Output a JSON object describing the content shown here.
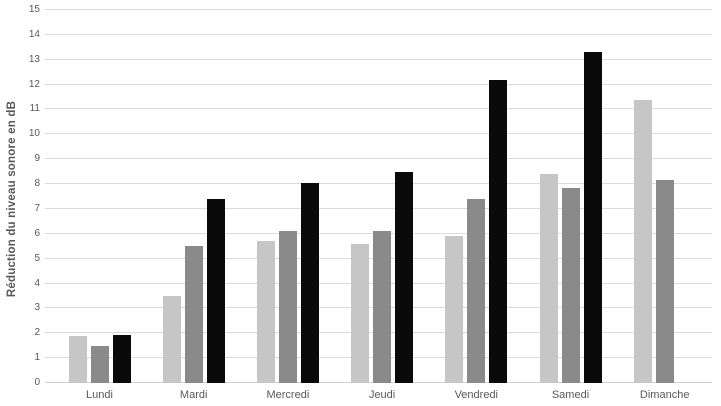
{
  "chart_data": {
    "type": "bar",
    "title": "",
    "xlabel": "",
    "ylabel": "Réduction du niveau sonore en dB",
    "ylim": [
      0,
      15
    ],
    "ytick_step": 1,
    "ytick_labels": [
      "0",
      "1",
      "2",
      "3",
      "4",
      "5",
      "6",
      "7",
      "8",
      "9",
      "10",
      "11",
      "12",
      "13",
      "14",
      "15"
    ],
    "grid": true,
    "legend_position": "none",
    "categories": [
      "Lundi",
      "Mardi",
      "Mercredi",
      "Jeudi",
      "Vendredi",
      "Samedi",
      "Dimanche"
    ],
    "series": [
      {
        "name": "light-gray-bars",
        "color": "#c6c6c6",
        "values": [
          1.9,
          3.5,
          5.7,
          5.6,
          5.9,
          8.4,
          11.4
        ]
      },
      {
        "name": "medium-gray-bars",
        "color": "#8a8a8a",
        "values": [
          1.5,
          5.5,
          6.1,
          6.1,
          7.4,
          7.85,
          8.15
        ]
      },
      {
        "name": "black-bars",
        "color": "#0a0a0a",
        "values": [
          1.95,
          7.4,
          8.05,
          8.5,
          12.2,
          13.3,
          null
        ]
      }
    ]
  },
  "colors": {
    "background": "#ffffff",
    "gridline": "#dcdcdc",
    "axis_text": "#595959"
  }
}
